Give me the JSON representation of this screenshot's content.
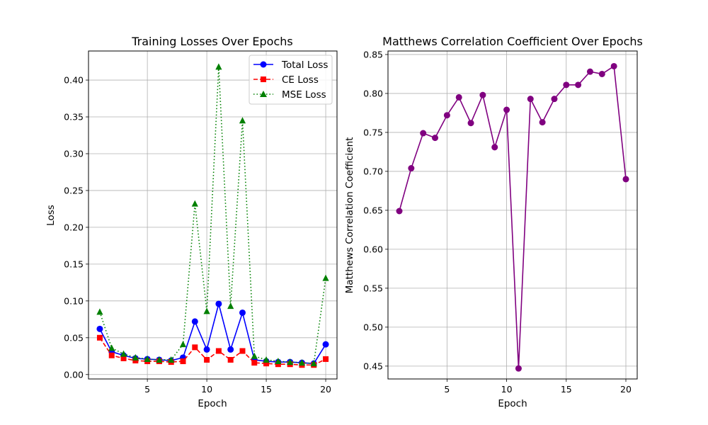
{
  "chart_data": [
    {
      "type": "line",
      "title": "Training Losses Over Epochs",
      "xlabel": "Epoch",
      "ylabel": "Loss",
      "xlim": [
        0.05,
        20.95
      ],
      "ylim": [
        -0.006,
        0.4395
      ],
      "xticks": [
        5,
        10,
        15,
        20
      ],
      "yticks": [
        0.0,
        0.05,
        0.1,
        0.15,
        0.2,
        0.25,
        0.3,
        0.35,
        0.4
      ],
      "ytick_labels": [
        "0.00",
        "0.05",
        "0.10",
        "0.15",
        "0.20",
        "0.25",
        "0.30",
        "0.35",
        "0.40"
      ],
      "grid": true,
      "legend_position": "top-right",
      "x": [
        1,
        2,
        3,
        4,
        5,
        6,
        7,
        8,
        9,
        10,
        11,
        12,
        13,
        14,
        15,
        16,
        17,
        18,
        19,
        20
      ],
      "series": [
        {
          "name": "Total Loss",
          "color": "#0000ff",
          "linestyle": "solid",
          "marker": "circle",
          "values": [
            0.062,
            0.031,
            0.026,
            0.022,
            0.021,
            0.02,
            0.019,
            0.023,
            0.072,
            0.034,
            0.096,
            0.034,
            0.084,
            0.02,
            0.018,
            0.017,
            0.017,
            0.016,
            0.015,
            0.041
          ]
        },
        {
          "name": "CE Loss",
          "color": "#ff0000",
          "linestyle": "dashed",
          "marker": "square",
          "values": [
            0.05,
            0.026,
            0.022,
            0.019,
            0.018,
            0.018,
            0.017,
            0.018,
            0.037,
            0.02,
            0.032,
            0.02,
            0.032,
            0.016,
            0.015,
            0.014,
            0.014,
            0.013,
            0.013,
            0.021
          ]
        },
        {
          "name": "MSE Loss",
          "color": "#008000",
          "linestyle": "dotted",
          "marker": "triangle",
          "values": [
            0.085,
            0.036,
            0.028,
            0.023,
            0.021,
            0.02,
            0.02,
            0.041,
            0.232,
            0.086,
            0.418,
            0.093,
            0.345,
            0.025,
            0.02,
            0.018,
            0.017,
            0.016,
            0.015,
            0.131
          ]
        }
      ]
    },
    {
      "type": "line",
      "title": "Matthews Correlation Coefficient Over Epochs",
      "xlabel": "Epoch",
      "ylabel": "Matthews Correlation Coefficient",
      "xlim": [
        0.05,
        20.95
      ],
      "ylim": [
        0.4335,
        0.8545
      ],
      "xticks": [
        5,
        10,
        15,
        20
      ],
      "yticks": [
        0.45,
        0.5,
        0.55,
        0.6,
        0.65,
        0.7,
        0.75,
        0.8,
        0.85
      ],
      "ytick_labels": [
        "0.45",
        "0.50",
        "0.55",
        "0.60",
        "0.65",
        "0.70",
        "0.75",
        "0.80",
        "0.85"
      ],
      "grid": true,
      "x": [
        1,
        2,
        3,
        4,
        5,
        6,
        7,
        8,
        9,
        10,
        11,
        12,
        13,
        14,
        15,
        16,
        17,
        18,
        19,
        20
      ],
      "series": [
        {
          "color": "#800080",
          "linestyle": "solid",
          "marker": "circle",
          "values": [
            0.649,
            0.704,
            0.749,
            0.743,
            0.772,
            0.795,
            0.762,
            0.798,
            0.731,
            0.779,
            0.447,
            0.793,
            0.763,
            0.793,
            0.811,
            0.811,
            0.828,
            0.825,
            0.835,
            0.69
          ]
        }
      ]
    }
  ]
}
